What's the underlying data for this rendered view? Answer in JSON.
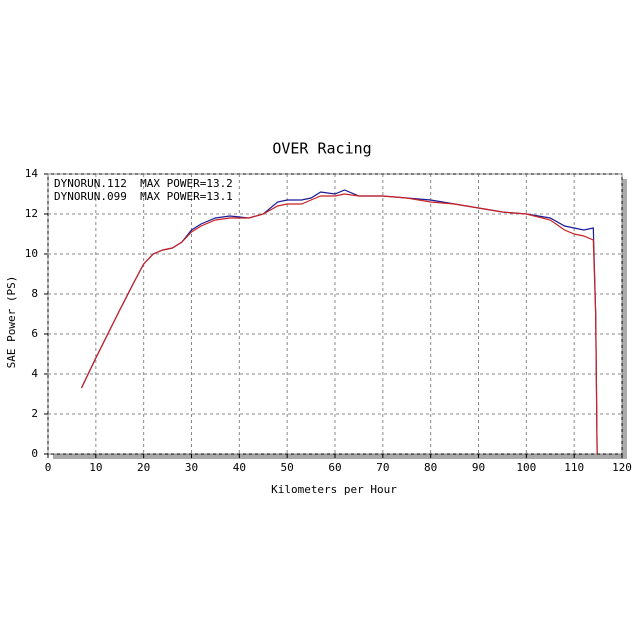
{
  "chart_data": {
    "type": "line",
    "title": "OVER Racing",
    "x_label": "Kilometers per Hour",
    "y_label": "SAE Power (PS)",
    "x": [
      7,
      10,
      15,
      18,
      20,
      22,
      24,
      26,
      28,
      30,
      32,
      35,
      38,
      42,
      45,
      48,
      50,
      53,
      55,
      57,
      60,
      62,
      65,
      70,
      75,
      80,
      85,
      90,
      95,
      100,
      105,
      108,
      110,
      112,
      114,
      114.5,
      114.8
    ],
    "series": [
      {
        "name": "DYNORUN.112  MAX POWER=13.2",
        "color": "#1a1a9a",
        "values": [
          3.3,
          4.8,
          7.2,
          8.6,
          9.5,
          10.0,
          10.2,
          10.3,
          10.6,
          11.2,
          11.5,
          11.8,
          11.9,
          11.8,
          12.0,
          12.6,
          12.7,
          12.7,
          12.8,
          13.1,
          13.0,
          13.2,
          12.9,
          12.9,
          12.8,
          12.7,
          12.5,
          12.3,
          12.1,
          12.0,
          11.8,
          11.4,
          11.3,
          11.2,
          11.3,
          7,
          0
        ]
      },
      {
        "name": "DYNORUN.099  MAX POWER=13.1",
        "color": "#cc2222",
        "values": [
          3.3,
          4.8,
          7.2,
          8.6,
          9.5,
          10.0,
          10.2,
          10.3,
          10.6,
          11.1,
          11.4,
          11.7,
          11.8,
          11.8,
          12.0,
          12.4,
          12.5,
          12.5,
          12.7,
          12.9,
          12.9,
          13.0,
          12.9,
          12.9,
          12.8,
          12.6,
          12.5,
          12.3,
          12.1,
          12.0,
          11.7,
          11.2,
          11.0,
          10.9,
          10.7,
          7,
          0
        ]
      }
    ],
    "xlim": [
      0,
      120
    ],
    "xticks": [
      0,
      10,
      20,
      30,
      40,
      50,
      60,
      70,
      80,
      90,
      100,
      110,
      120
    ],
    "ylim": [
      0,
      14
    ],
    "yticks": [
      0,
      2,
      4,
      6,
      8,
      10,
      12,
      14
    ],
    "grid": true
  }
}
